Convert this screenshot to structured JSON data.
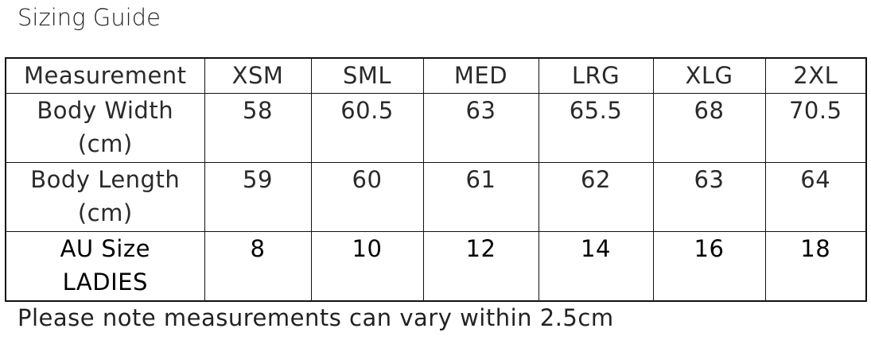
{
  "title": "Sizing Guide",
  "table": {
    "headers": [
      "Measurement",
      "XSM",
      "SML",
      "MED",
      "LRG",
      "XLG",
      "2XL"
    ],
    "rows": [
      {
        "label": [
          "Body Width",
          "(cm)"
        ],
        "values": [
          "58",
          "60.5",
          "63",
          "65.5",
          "68",
          "70.5"
        ]
      },
      {
        "label": [
          "Body Length",
          "(cm)"
        ],
        "values": [
          "59",
          "60",
          "61",
          "62",
          "63",
          "64"
        ]
      },
      {
        "label": [
          "AU Size",
          "LADIES"
        ],
        "values": [
          "8",
          "10",
          "12",
          "14",
          "16",
          "18"
        ]
      }
    ]
  },
  "note": "Please note measurements can vary within 2.5cm"
}
